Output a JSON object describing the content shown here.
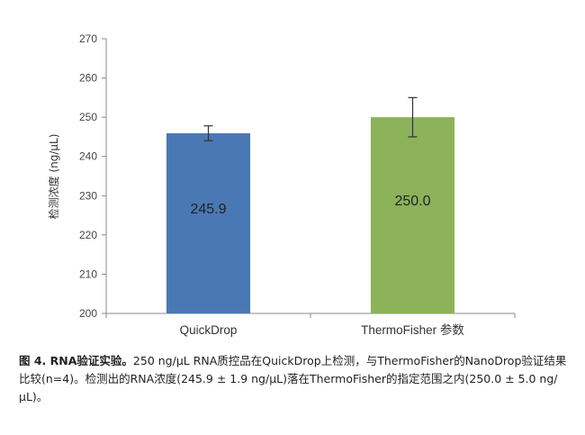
{
  "chart_data": {
    "type": "bar",
    "categories": [
      "QuickDrop",
      "ThermoFisher 参数"
    ],
    "values": [
      245.9,
      250.0
    ],
    "value_labels": [
      "245.9",
      "250.0"
    ],
    "errors": [
      1.9,
      5.0
    ],
    "ylabel": "检测浓度 (ng/μL)",
    "ylim": [
      200,
      270
    ],
    "yticks": [
      200,
      210,
      220,
      230,
      240,
      250,
      260,
      270
    ],
    "colors": [
      "#4a78b5",
      "#8cb25a"
    ],
    "grid": false
  },
  "caption": {
    "title": "图 4. RNA验证实验。",
    "body": "250 ng/μL RNA质控品在QuickDrop上检测，与ThermoFisher的NanoDrop验证结果比较(n=4)。检测出的RNA浓度(245.9 ± 1.9 ng/μL)落在ThermoFisher的指定范围之内(250.0 ± 5.0 ng/μL)。"
  }
}
